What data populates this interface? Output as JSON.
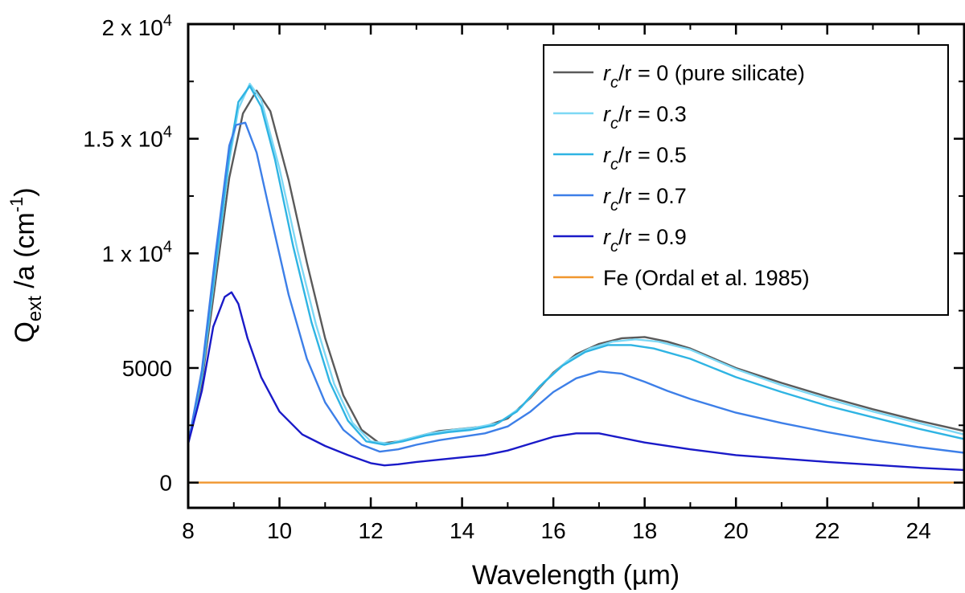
{
  "chart_data": {
    "type": "line",
    "xlabel": "Wavelength (µm)",
    "ylabel": {
      "base": "Q",
      "sub": "ext",
      "rest": " /a (cm",
      "sup": "-1",
      "close": ")"
    },
    "xlim": [
      8,
      25
    ],
    "ylim": [
      -1100,
      20000
    ],
    "x_ticks": [
      {
        "value": 8,
        "label": "8"
      },
      {
        "value": 10,
        "label": "10"
      },
      {
        "value": 12,
        "label": "12"
      },
      {
        "value": 14,
        "label": "14"
      },
      {
        "value": 16,
        "label": "16"
      },
      {
        "value": 18,
        "label": "18"
      },
      {
        "value": 20,
        "label": "20"
      },
      {
        "value": 22,
        "label": "22"
      },
      {
        "value": 24,
        "label": "24"
      }
    ],
    "y_ticks": [
      {
        "value": 0,
        "label": "0"
      },
      {
        "value": 5000,
        "label": "5000"
      },
      {
        "value": 10000,
        "label": "1 x 10",
        "sup": "4"
      },
      {
        "value": 15000,
        "label": "1.5 x 10",
        "sup": "4"
      },
      {
        "value": 20000,
        "label": "2 x 10",
        "sup": "4"
      }
    ],
    "legend_position": "top-right",
    "series": [
      {
        "name": "rc/r = 0 (pure silicate)",
        "legend": {
          "r1": "r",
          "sub": "c",
          "rest": "/r = 0 (pure silicate)"
        },
        "color": "#5a5a5a",
        "x": [
          8.0,
          8.3,
          8.6,
          8.9,
          9.2,
          9.5,
          9.8,
          10.2,
          10.6,
          11.0,
          11.4,
          11.8,
          12.2,
          12.6,
          13.0,
          13.5,
          14.0,
          14.5,
          15.0,
          15.5,
          16.0,
          16.5,
          17.0,
          17.5,
          18.0,
          18.5,
          19.0,
          20.0,
          21.0,
          22.0,
          23.0,
          24.0,
          25.0
        ],
        "y": [
          1700,
          4400,
          8800,
          13300,
          16100,
          17100,
          16200,
          13200,
          9600,
          6300,
          3800,
          2300,
          1700,
          1800,
          2000,
          2250,
          2350,
          2450,
          2800,
          3700,
          4800,
          5600,
          6050,
          6300,
          6350,
          6150,
          5850,
          5000,
          4350,
          3750,
          3200,
          2700,
          2250
        ]
      },
      {
        "name": "rc/r = 0.3",
        "legend": {
          "r1": "r",
          "sub": "c",
          "rest": "/r = 0.3"
        },
        "color": "#7dd8f5",
        "x": [
          8.0,
          8.3,
          8.6,
          8.9,
          9.1,
          9.35,
          9.6,
          10.0,
          10.4,
          10.8,
          11.2,
          11.6,
          12.0,
          12.4,
          12.8,
          13.3,
          13.8,
          14.3,
          14.8,
          15.3,
          15.8,
          16.3,
          16.8,
          17.3,
          17.8,
          18.3,
          19.0,
          20.0,
          21.0,
          22.0,
          23.0,
          24.0,
          25.0
        ],
        "y": [
          1700,
          4600,
          9300,
          14000,
          16300,
          17400,
          16700,
          13700,
          10100,
          6900,
          4300,
          2600,
          1800,
          1700,
          1900,
          2150,
          2300,
          2400,
          2600,
          3300,
          4400,
          5300,
          5850,
          6150,
          6250,
          6150,
          5800,
          4950,
          4250,
          3650,
          3100,
          2600,
          2100
        ]
      },
      {
        "name": "rc/r = 0.5",
        "legend": {
          "r1": "r",
          "sub": "c",
          "rest": "/r = 0.5"
        },
        "color": "#2fb4e3",
        "x": [
          8.0,
          8.3,
          8.6,
          8.9,
          9.1,
          9.35,
          9.6,
          9.9,
          10.3,
          10.7,
          11.1,
          11.5,
          11.9,
          12.3,
          12.7,
          13.2,
          13.7,
          14.2,
          14.7,
          15.2,
          15.7,
          16.2,
          16.7,
          17.2,
          17.7,
          18.2,
          19.0,
          20.0,
          21.0,
          22.0,
          23.0,
          24.0,
          25.0
        ],
        "y": [
          1700,
          4700,
          9500,
          14300,
          16600,
          17300,
          16400,
          14100,
          10300,
          7000,
          4400,
          2700,
          1800,
          1650,
          1800,
          2050,
          2200,
          2300,
          2500,
          3100,
          4200,
          5100,
          5700,
          6000,
          6000,
          5850,
          5400,
          4600,
          3950,
          3350,
          2850,
          2350,
          1900
        ]
      },
      {
        "name": "rc/r = 0.7",
        "legend": {
          "r1": "r",
          "sub": "c",
          "rest": "/r = 0.7"
        },
        "color": "#3d7fe8",
        "x": [
          8.0,
          8.3,
          8.6,
          8.9,
          9.05,
          9.25,
          9.5,
          9.8,
          10.2,
          10.6,
          11.0,
          11.4,
          11.8,
          12.2,
          12.6,
          13.0,
          13.5,
          14.0,
          14.5,
          15.0,
          15.5,
          16.0,
          16.5,
          17.0,
          17.5,
          18.0,
          18.5,
          19.0,
          20.0,
          21.0,
          22.0,
          23.0,
          24.0,
          25.0
        ],
        "y": [
          1700,
          4900,
          10000,
          14700,
          15600,
          15700,
          14400,
          11700,
          8200,
          5400,
          3500,
          2300,
          1650,
          1350,
          1450,
          1650,
          1850,
          2000,
          2150,
          2450,
          3100,
          3950,
          4550,
          4850,
          4750,
          4400,
          4000,
          3650,
          3050,
          2600,
          2200,
          1850,
          1550,
          1300
        ]
      },
      {
        "name": "rc/r = 0.9",
        "legend": {
          "r1": "r",
          "sub": "c",
          "rest": "/r = 0.9"
        },
        "color": "#1a1ac8",
        "x": [
          8.0,
          8.3,
          8.55,
          8.8,
          8.95,
          9.1,
          9.3,
          9.6,
          10.0,
          10.5,
          11.0,
          11.5,
          12.0,
          12.3,
          12.6,
          13.0,
          13.5,
          14.0,
          14.5,
          15.0,
          15.5,
          16.0,
          16.5,
          17.0,
          17.5,
          18.0,
          19.0,
          20.0,
          21.0,
          22.0,
          23.0,
          24.0,
          25.0
        ],
        "y": [
          1700,
          4000,
          6800,
          8100,
          8300,
          7800,
          6300,
          4600,
          3100,
          2100,
          1600,
          1200,
          850,
          750,
          800,
          900,
          1000,
          1100,
          1200,
          1400,
          1700,
          2000,
          2150,
          2150,
          1950,
          1750,
          1450,
          1200,
          1050,
          900,
          780,
          650,
          550
        ]
      },
      {
        "name": "Fe (Ordal et al. 1985)",
        "legend": {
          "r1": "",
          "sub": "",
          "rest": "Fe (Ordal et al. 1985)"
        },
        "color": "#f0962e",
        "x": [
          8.0,
          25.0
        ],
        "y": [
          0,
          0
        ]
      }
    ]
  }
}
